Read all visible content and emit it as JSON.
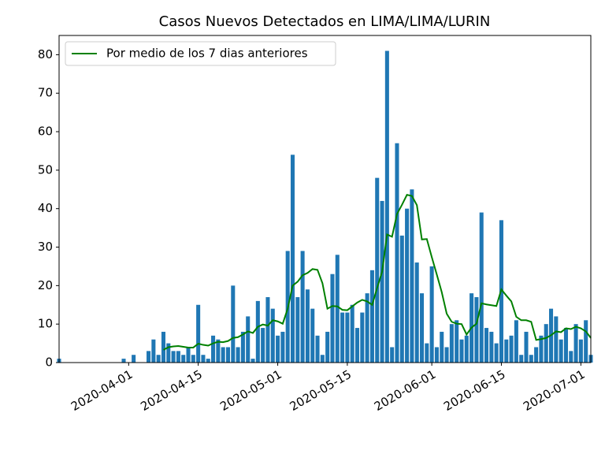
{
  "chart_data": {
    "type": "bar",
    "title": "Casos Nuevos Detectados en LIMA/LIMA/LURIN",
    "x": [
      "2020-03-18",
      "2020-03-19",
      "2020-03-20",
      "2020-03-21",
      "2020-03-22",
      "2020-03-23",
      "2020-03-24",
      "2020-03-25",
      "2020-03-26",
      "2020-03-27",
      "2020-03-28",
      "2020-03-29",
      "2020-03-30",
      "2020-03-31",
      "2020-04-01",
      "2020-04-02",
      "2020-04-03",
      "2020-04-04",
      "2020-04-05",
      "2020-04-06",
      "2020-04-07",
      "2020-04-08",
      "2020-04-09",
      "2020-04-10",
      "2020-04-11",
      "2020-04-12",
      "2020-04-13",
      "2020-04-14",
      "2020-04-15",
      "2020-04-16",
      "2020-04-17",
      "2020-04-18",
      "2020-04-19",
      "2020-04-20",
      "2020-04-21",
      "2020-04-22",
      "2020-04-23",
      "2020-04-24",
      "2020-04-25",
      "2020-04-26",
      "2020-04-27",
      "2020-04-28",
      "2020-04-29",
      "2020-04-30",
      "2020-05-01",
      "2020-05-02",
      "2020-05-03",
      "2020-05-04",
      "2020-05-05",
      "2020-05-06",
      "2020-05-07",
      "2020-05-08",
      "2020-05-09",
      "2020-05-10",
      "2020-05-11",
      "2020-05-12",
      "2020-05-13",
      "2020-05-14",
      "2020-05-15",
      "2020-05-16",
      "2020-05-17",
      "2020-05-18",
      "2020-05-19",
      "2020-05-20",
      "2020-05-21",
      "2020-05-22",
      "2020-05-23",
      "2020-05-24",
      "2020-05-25",
      "2020-05-26",
      "2020-05-27",
      "2020-05-28",
      "2020-05-29",
      "2020-05-30",
      "2020-05-31",
      "2020-06-01",
      "2020-06-02",
      "2020-06-03",
      "2020-06-04",
      "2020-06-05",
      "2020-06-06",
      "2020-06-07",
      "2020-06-08",
      "2020-06-09",
      "2020-06-10",
      "2020-06-11",
      "2020-06-12",
      "2020-06-13",
      "2020-06-14",
      "2020-06-15",
      "2020-06-16",
      "2020-06-17",
      "2020-06-18",
      "2020-06-19",
      "2020-06-20",
      "2020-06-21",
      "2020-06-22",
      "2020-06-23",
      "2020-06-24",
      "2020-06-25",
      "2020-06-26",
      "2020-06-27",
      "2020-06-28",
      "2020-06-29",
      "2020-06-30",
      "2020-07-01",
      "2020-07-02",
      "2020-07-03"
    ],
    "values": [
      1,
      0,
      0,
      0,
      0,
      0,
      0,
      0,
      0,
      0,
      0,
      0,
      0,
      1,
      0,
      2,
      0,
      0,
      3,
      6,
      2,
      8,
      5,
      3,
      3,
      2,
      4,
      2,
      15,
      2,
      1,
      7,
      6,
      4,
      4,
      20,
      4,
      8,
      12,
      1,
      16,
      9,
      17,
      14,
      7,
      8,
      29,
      54,
      17,
      29,
      19,
      14,
      7,
      2,
      8,
      23,
      28,
      13,
      13,
      15,
      9,
      13,
      18,
      24,
      48,
      42,
      81,
      4,
      57,
      33,
      40,
      45,
      26,
      18,
      5,
      25,
      4,
      8,
      4,
      10,
      11,
      6,
      7,
      18,
      17,
      39,
      9,
      8,
      5,
      37,
      6,
      7,
      11,
      2,
      8,
      2,
      4,
      7,
      10,
      14,
      12,
      6,
      9,
      3,
      10,
      6,
      11,
      2
    ],
    "color": "#1f77b4",
    "series": [
      {
        "name": "Por medio de los 7 dias anteriores",
        "type": "line",
        "color": "#008000",
        "values": [
          null,
          null,
          null,
          null,
          null,
          null,
          null,
          null,
          null,
          null,
          null,
          null,
          null,
          null,
          null,
          null,
          null,
          null,
          null,
          null,
          null,
          3.3,
          4,
          4.2,
          4.3,
          4.1,
          3.9,
          3.9,
          4.9,
          4.6,
          4.4,
          5,
          5.4,
          5.3,
          5.6,
          6.4,
          6.6,
          7.3,
          8.1,
          7.7,
          9.3,
          9.9,
          9.6,
          11,
          10.7,
          10.1,
          14,
          20,
          21,
          22.7,
          23.3,
          24.3,
          24.1,
          20.6,
          14,
          14.7,
          14.6,
          13.7,
          13.6,
          14.6,
          15.6,
          16.3,
          15.9,
          15,
          19.4,
          23.6,
          33.3,
          32.7,
          38.6,
          41,
          43.6,
          43.3,
          40.9,
          32,
          32.1,
          27.4,
          22.9,
          18.3,
          12.7,
          10.6,
          10.1,
          10,
          7.3,
          9.1,
          10.1,
          15.4,
          15.1,
          14.9,
          14.7,
          19,
          17.4,
          15.9,
          11.9,
          11,
          11,
          10.6,
          5.9,
          6.1,
          6.4,
          7.1,
          8.1,
          7.9,
          8.9,
          8.7,
          9.3,
          8.9,
          8.1,
          6.4
        ]
      }
    ],
    "xlim": [
      "2020-03-18",
      "2020-07-03"
    ],
    "xticks": [
      "2020-04-01",
      "2020-04-15",
      "2020-05-01",
      "2020-05-15",
      "2020-06-01",
      "2020-06-15",
      "2020-07-01"
    ],
    "ylim": [
      0,
      85
    ],
    "yticks": [
      0,
      10,
      20,
      30,
      40,
      50,
      60,
      70,
      80
    ],
    "legend": "upper left"
  }
}
